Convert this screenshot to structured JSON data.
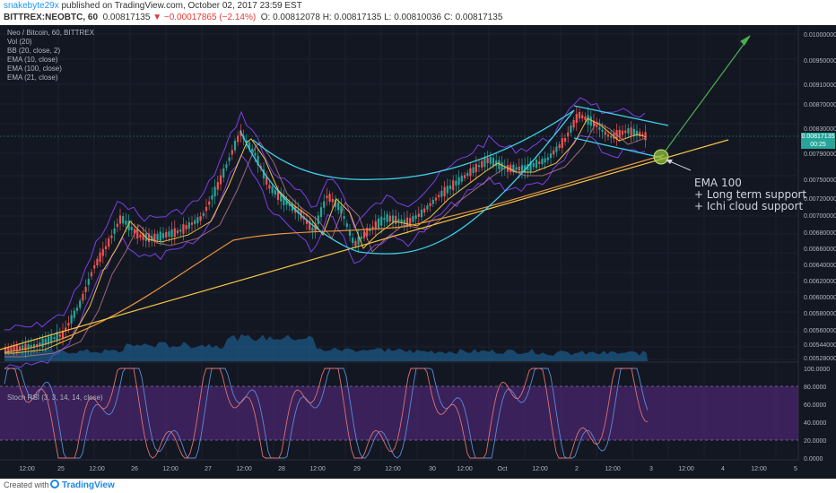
{
  "header": {
    "author": "snakebyte29x",
    "published_text": " published on TradingView.com, October 02, 2017 23:59 EST",
    "symbol": "BITTREX:NEOBTC, 60",
    "last_price": "0.00817135",
    "change": "▼ −0.00017865 (−2.14%)",
    "ohlc": "O: 0.00812078 H: 0.00817135 L: 0.00810036 C: 0.00817135"
  },
  "legend": {
    "title": "Neo / Bitcoin, 60, BITTREX",
    "items": [
      "Vol (20)",
      "BB (20, close, 2)",
      "EMA (10, close)",
      "EMA (100, close)",
      "EMA (21, close)"
    ]
  },
  "stoch_label": "Stoch RSI (3, 3, 14, 14, close)",
  "annotation": {
    "line1": "EMA 100",
    "line2": "+ Long term support",
    "line3": "+ Ichi cloud support"
  },
  "price_tags": {
    "current": "0.00817135",
    "timer": "00:25"
  },
  "price_axis": [
    "0.01000000",
    "0.00950000",
    "0.00910000",
    "0.00870000",
    "0.00830000",
    "0.00790000",
    "0.00750000",
    "0.00720000",
    "0.00700000",
    "0.00680000",
    "0.00660000",
    "0.00640000",
    "0.00620000",
    "0.00600000",
    "0.00580000",
    "0.00560000",
    "0.00544000",
    "0.00528000"
  ],
  "stoch_axis": [
    "100.0000",
    "80.0000",
    "60.0000",
    "40.0000",
    "20.0000",
    "0.0000"
  ],
  "time_axis": [
    "12:00",
    "25",
    "12:00",
    "26",
    "12:00",
    "27",
    "12:00",
    "28",
    "12:00",
    "29",
    "12:00",
    "30",
    "12:00",
    "Oct",
    "12:00",
    "2",
    "12:00",
    "3",
    "12:00",
    "4",
    "12:00",
    "5"
  ],
  "footer": {
    "created": "Created with",
    "brand": "TradingView"
  },
  "colors": {
    "bull": "#26a69a",
    "bear": "#ef5350",
    "bb": "#7b3fe4",
    "ema100": "#e8943a",
    "ema10": "#f0c040",
    "trend": "#f5c542",
    "cyan": "#3fd0e6",
    "arrow": "#4caf50",
    "stoch_band": "#5b2a86"
  }
}
